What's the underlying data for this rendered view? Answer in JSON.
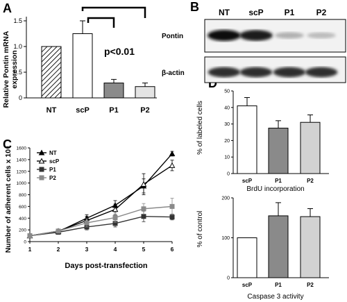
{
  "panels": {
    "a": "A",
    "b": "B",
    "c": "C",
    "d": "D"
  },
  "chart_data": [
    {
      "type": "bar",
      "panel": "A",
      "ylabel": "Relative Pontin mRNA expression",
      "categories": [
        "NT",
        "scP",
        "P1",
        "P2"
      ],
      "values": [
        1.0,
        1.25,
        0.29,
        0.22
      ],
      "errors": [
        0,
        0.25,
        0.07,
        0.07
      ],
      "ylim": [
        0,
        1.5
      ],
      "yticks": [
        "0",
        "0.5",
        "1.0",
        "1.5"
      ],
      "annotation": "p<0.01"
    },
    {
      "type": "blot",
      "panel": "B",
      "lanes": [
        "NT",
        "scP",
        "P1",
        "P2"
      ],
      "rows": [
        {
          "label": "Pontin",
          "intensities": [
            1.0,
            0.95,
            0.25,
            0.2
          ]
        },
        {
          "label": "β-actin",
          "intensities": [
            0.85,
            0.85,
            0.85,
            0.85
          ]
        }
      ]
    },
    {
      "type": "line",
      "panel": "C",
      "xlabel": "Days post-transfection",
      "ylabel": "Number of adherent cells x 10⁴",
      "x": [
        1,
        2,
        3,
        4,
        5,
        6
      ],
      "xlim": [
        1,
        6
      ],
      "ylim": [
        0,
        1600
      ],
      "yticks": [
        "0",
        "200",
        "400",
        "600",
        "800",
        "1000",
        "1200",
        "1400",
        "1600"
      ],
      "xticks": [
        "1",
        "2",
        "3",
        "4",
        "5",
        "6"
      ],
      "series": [
        {
          "name": "NT",
          "values": [
            100,
            170,
            400,
            620,
            950,
            1500
          ],
          "errors": [
            0,
            20,
            60,
            80,
            120,
            40
          ],
          "color": "#000000",
          "marker": "triangle-filled"
        },
        {
          "name": "scP",
          "values": [
            100,
            180,
            360,
            550,
            980,
            1300
          ],
          "errors": [
            0,
            20,
            70,
            90,
            180,
            90
          ],
          "color": "#000000",
          "marker": "triangle-open"
        },
        {
          "name": "P1",
          "values": [
            100,
            160,
            250,
            310,
            430,
            420
          ],
          "errors": [
            0,
            20,
            50,
            60,
            90,
            50
          ],
          "color": "#333333",
          "marker": "square"
        },
        {
          "name": "P2",
          "values": [
            100,
            180,
            320,
            410,
            560,
            600
          ],
          "errors": [
            0,
            20,
            70,
            80,
            90,
            140
          ],
          "color": "#8a8a8a",
          "marker": "square"
        }
      ]
    },
    {
      "type": "bar",
      "panel": "D-top",
      "ylabel": "% of labeled cells",
      "xlabel": "BrdU incorporation",
      "categories": [
        "scP",
        "P1",
        "P2"
      ],
      "values": [
        41,
        27.5,
        31
      ],
      "errors": [
        5,
        4.5,
        4.5
      ],
      "colors": [
        "#ffffff",
        "#8a8a8a",
        "#d2d2d2"
      ],
      "ylim": [
        0,
        50
      ],
      "yticks": [
        "0",
        "10",
        "20",
        "30",
        "40",
        "50"
      ]
    },
    {
      "type": "bar",
      "panel": "D-bottom",
      "ylabel": "% of control",
      "xlabel": "Caspase 3 activity",
      "categories": [
        "scP",
        "P1",
        "P2"
      ],
      "values": [
        100,
        155,
        153
      ],
      "errors": [
        0,
        33,
        20
      ],
      "colors": [
        "#ffffff",
        "#8a8a8a",
        "#d2d2d2"
      ],
      "ylim": [
        0,
        200
      ],
      "yticks": [
        "0",
        "100",
        "200"
      ]
    }
  ]
}
